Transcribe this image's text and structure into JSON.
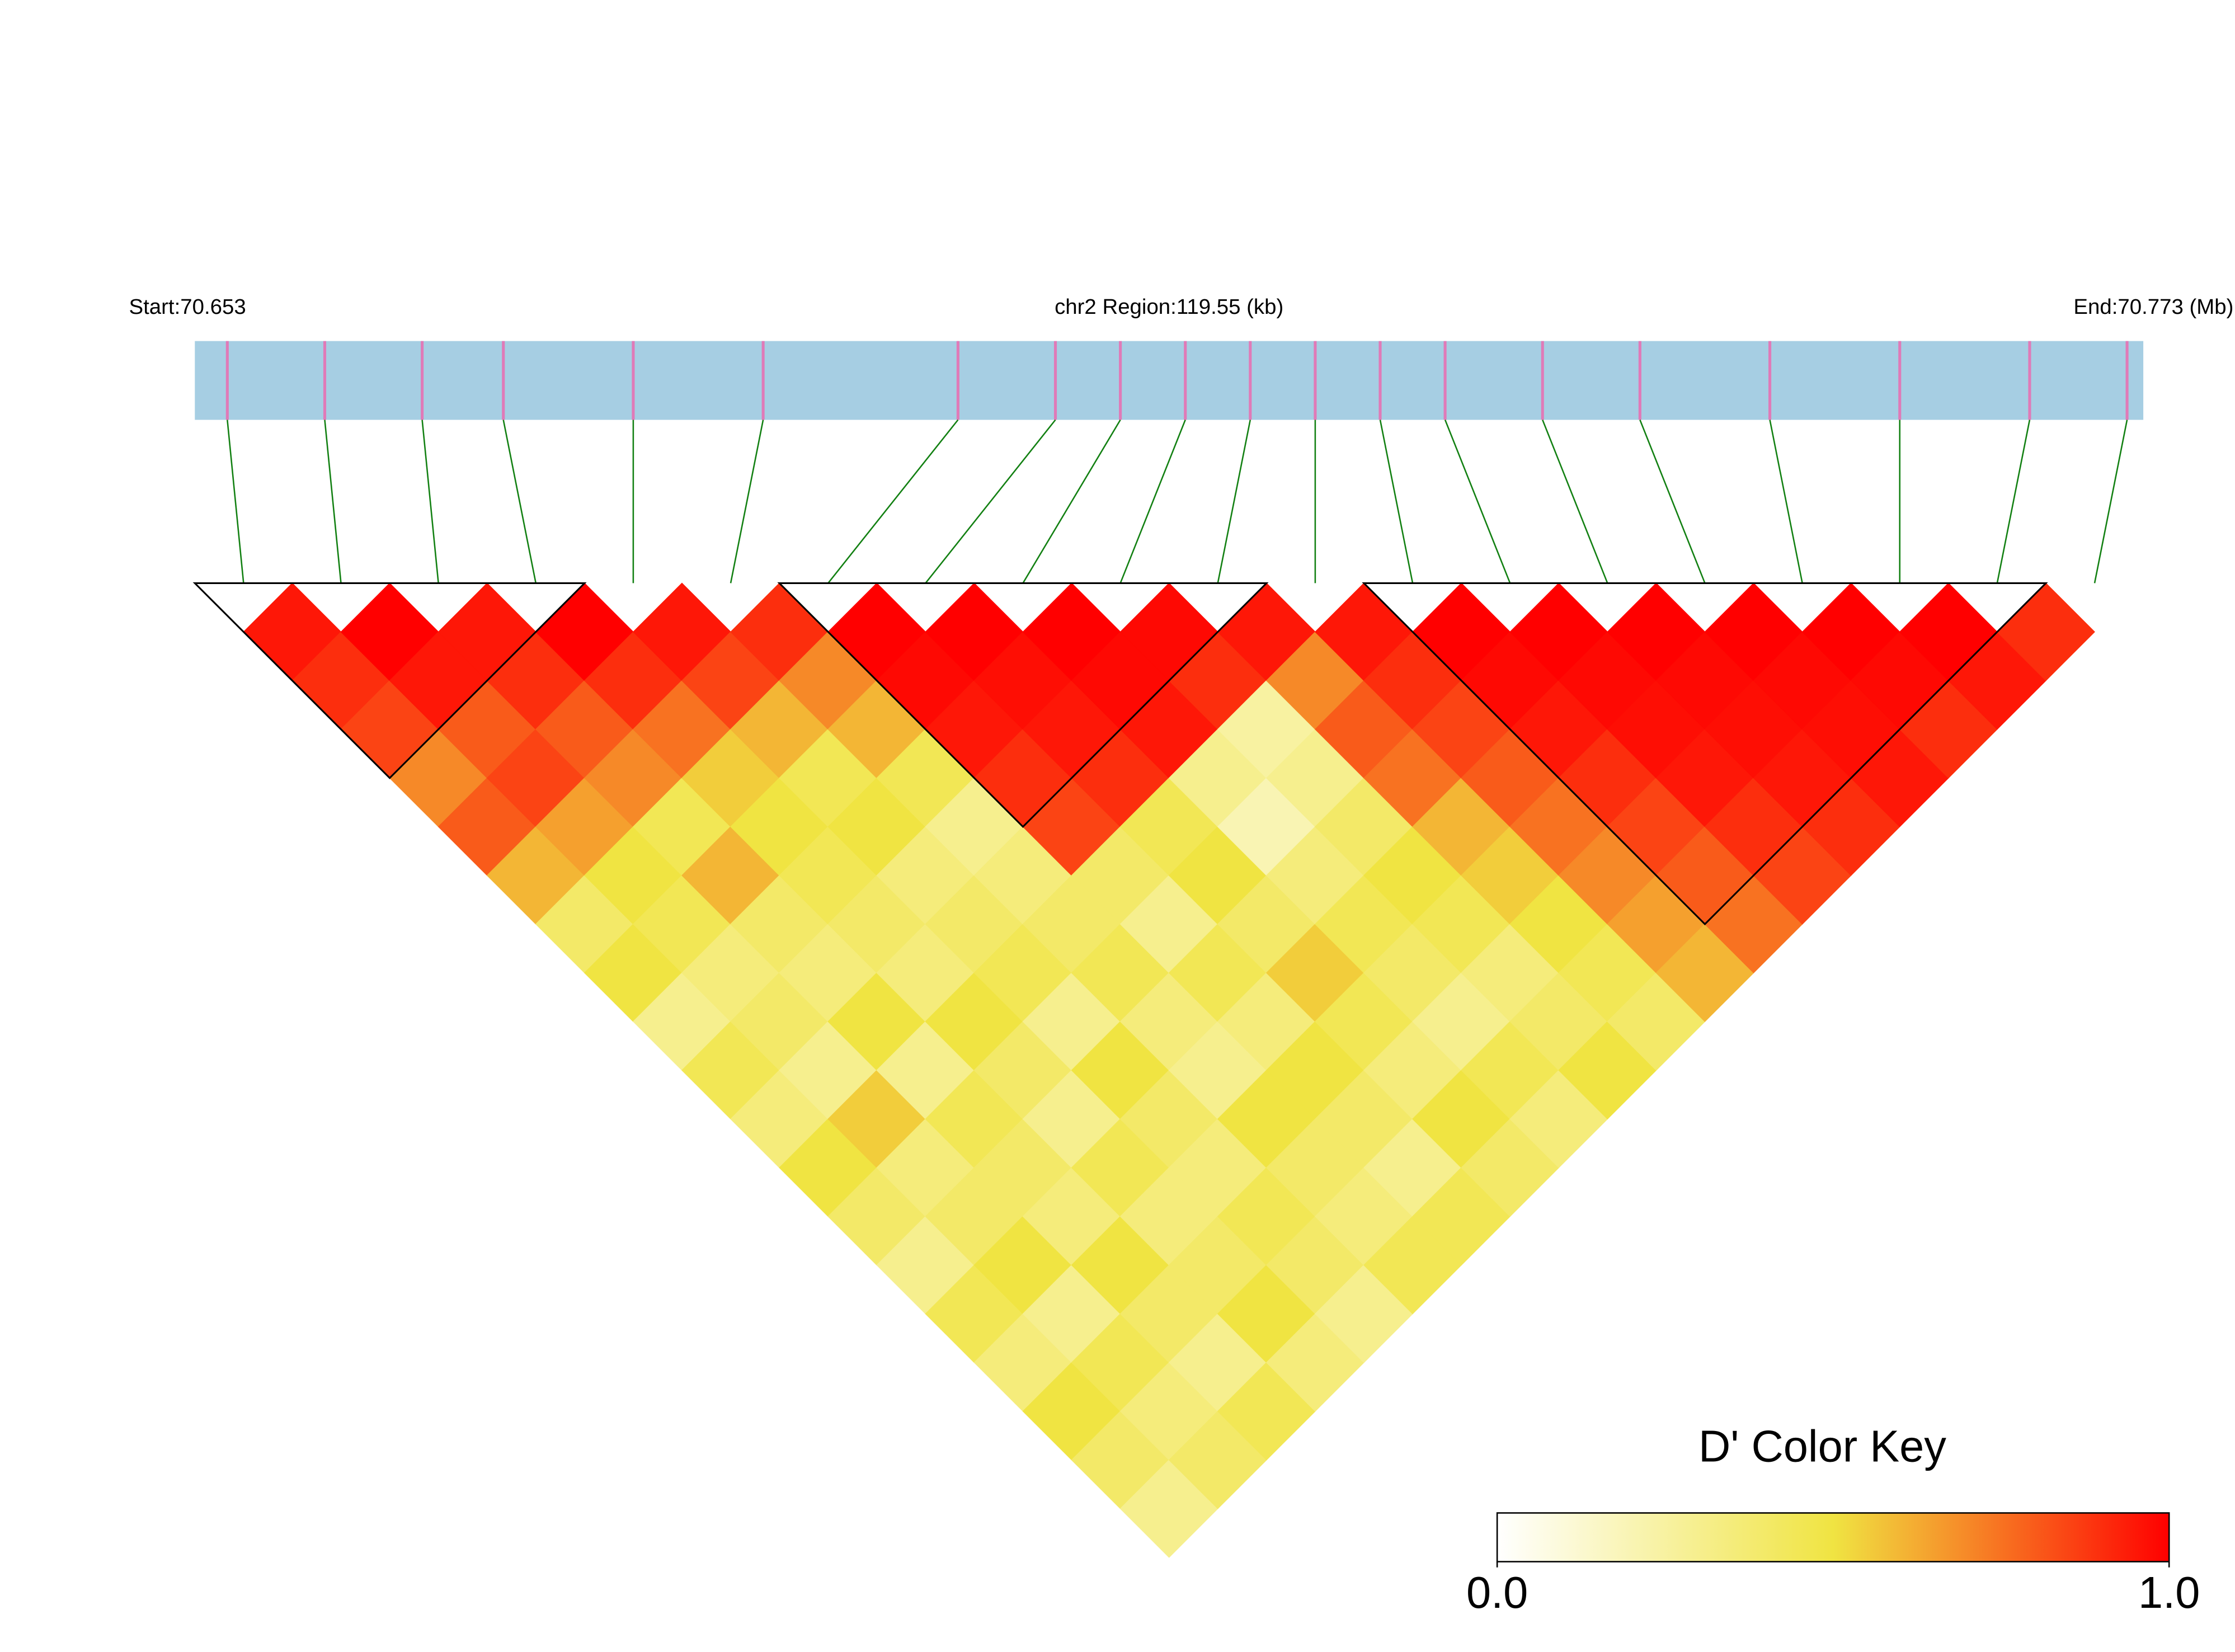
{
  "chart_data": {
    "type": "ld-heatmap",
    "start_label": "Start:70.653",
    "region_label": "chr2 Region:119.55 (kb)",
    "end_label": "End:70.773 (Mb)",
    "key_title": "D' Color Key",
    "xlim": [
      70.653,
      70.773
    ],
    "snp_positions": [
      70.655,
      70.661,
      70.667,
      70.672,
      70.68,
      70.688,
      70.7,
      70.706,
      70.71,
      70.714,
      70.718,
      70.722,
      70.726,
      70.73,
      70.736,
      70.742,
      70.75,
      70.758,
      70.766,
      70.772
    ],
    "dprime": [
      [
        0.95,
        0.9,
        0.85,
        0.7,
        0.8,
        0.6,
        0.4,
        0.5,
        0.3,
        0.45,
        0.35,
        0.5,
        0.4,
        0.3,
        0.45,
        0.35,
        0.5,
        0.4,
        0.3
      ],
      [
        1,
        0.95,
        0.8,
        0.85,
        0.65,
        0.5,
        0.45,
        0.35,
        0.4,
        0.3,
        0.55,
        0.35,
        0.4,
        0.5,
        0.3,
        0.45,
        0.35,
        0.4
      ],
      [
        0.95,
        0.9,
        0.8,
        0.7,
        0.45,
        0.6,
        0.4,
        0.35,
        0.5,
        0.3,
        0.45,
        0.4,
        0.35,
        0.5,
        0.4,
        0.3,
        0.45
      ],
      [
        1,
        0.9,
        0.75,
        0.55,
        0.5,
        0.45,
        0.4,
        0.35,
        0.5,
        0.4,
        0.3,
        0.45,
        0.35,
        0.4,
        0.5,
        0.35
      ],
      [
        0.95,
        0.85,
        0.6,
        0.45,
        0.5,
        0.35,
        0.4,
        0.45,
        0.3,
        0.5,
        0.4,
        0.35,
        0.45,
        0.4,
        0.3
      ],
      [
        0.9,
        0.7,
        0.6,
        0.45,
        0.3,
        0.35,
        0.4,
        0.45,
        0.35,
        0.3,
        0.5,
        0.4,
        0.35,
        0.45
      ],
      [
        1,
        0.98,
        0.95,
        0.9,
        0.85,
        0.4,
        0.3,
        0.45,
        0.35,
        0.5,
        0.4,
        0.3,
        0.45
      ],
      [
        1,
        0.97,
        0.95,
        0.9,
        0.45,
        0.5,
        0.4,
        0.55,
        0.45,
        0.35,
        0.5,
        0.4
      ],
      [
        1,
        0.98,
        0.95,
        0.3,
        0.2,
        0.35,
        0.45,
        0.4,
        0.3,
        0.45,
        0.35
      ],
      [
        0.98,
        0.9,
        0.25,
        0.3,
        0.4,
        0.5,
        0.45,
        0.35,
        0.4,
        0.5
      ],
      [
        0.95,
        0.7,
        0.8,
        0.75,
        0.6,
        0.55,
        0.5,
        0.45,
        0.4
      ],
      [
        0.95,
        0.9,
        0.85,
        0.8,
        0.75,
        0.7,
        0.65,
        0.6
      ],
      [
        1,
        0.98,
        0.95,
        0.9,
        0.85,
        0.8,
        0.75
      ],
      [
        1,
        0.98,
        0.97,
        0.95,
        0.9,
        0.85
      ],
      [
        1,
        0.98,
        0.97,
        0.95,
        0.9
      ],
      [
        1,
        0.98,
        0.97,
        0.95
      ],
      [
        1,
        0.98,
        0.9
      ],
      [
        1,
        0.95
      ],
      [
        0.9
      ]
    ],
    "blocks": [
      [
        0,
        3
      ],
      [
        6,
        10
      ],
      [
        12,
        18
      ]
    ],
    "clim": [
      0,
      1
    ],
    "colorscale": [
      "#ffffff",
      "#f0e442",
      "#ff0000"
    ],
    "key_ticks": [
      {
        "value": 0,
        "label": "0.0"
      },
      {
        "value": 1,
        "label": "1.0"
      }
    ],
    "bar_color": "#a6cee3",
    "snp_color": "#e07ab8",
    "link_color": "#128012"
  }
}
